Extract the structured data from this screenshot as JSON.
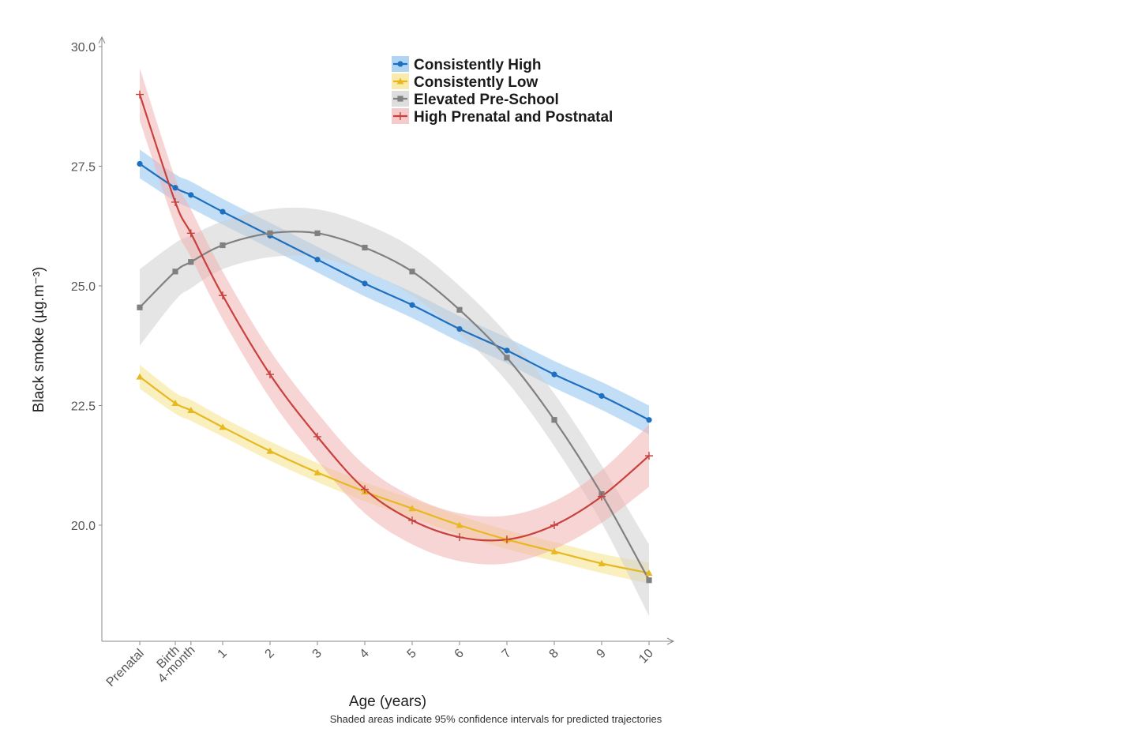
{
  "chart_data": {
    "type": "line",
    "title": "",
    "xlabel": "Age (years)",
    "ylabel": "Black smoke (µg.m⁻³)",
    "note": "Shaded areas indicate 95% confidence intervals for predicted trajectories",
    "ylim": [
      17.6,
      30.2
    ],
    "yticks": [
      20.0,
      22.5,
      25.0,
      27.5,
      30.0
    ],
    "ytick_labels": [
      "20.0",
      "22.5",
      "25.0",
      "27.5",
      "30.0"
    ],
    "x": [
      -0.75,
      0.0,
      0.33,
      1,
      2,
      3,
      4,
      5,
      6,
      7,
      8,
      9,
      10
    ],
    "xtick_labels": [
      "Prenatal",
      "Birth",
      "4-month",
      "1",
      "2",
      "3",
      "4",
      "5",
      "6",
      "7",
      "8",
      "9",
      "10"
    ],
    "legend_position": "top-center",
    "series": [
      {
        "name": "Consistently High",
        "color": "#1f6fbf",
        "band_color": "#8fc3ee",
        "marker": "circle",
        "values": [
          27.55,
          27.05,
          26.9,
          26.55,
          26.05,
          25.55,
          25.05,
          24.6,
          24.1,
          23.65,
          23.15,
          22.7,
          22.2
        ],
        "ci_halfwidth": [
          0.3,
          0.28,
          0.28,
          0.27,
          0.27,
          0.27,
          0.27,
          0.27,
          0.27,
          0.27,
          0.28,
          0.29,
          0.3
        ]
      },
      {
        "name": "Consistently Low",
        "color": "#e8b820",
        "band_color": "#f6e18a",
        "marker": "triangle",
        "values": [
          23.1,
          22.55,
          22.4,
          22.05,
          21.55,
          21.1,
          20.7,
          20.35,
          20.0,
          19.7,
          19.45,
          19.2,
          19.0
        ],
        "ci_halfwidth": [
          0.25,
          0.22,
          0.22,
          0.2,
          0.2,
          0.2,
          0.2,
          0.2,
          0.2,
          0.2,
          0.2,
          0.2,
          0.22
        ]
      },
      {
        "name": "Elevated Pre-School",
        "color": "#808080",
        "band_color": "#cfcfcf",
        "marker": "square",
        "values": [
          24.55,
          25.3,
          25.5,
          25.85,
          26.1,
          26.1,
          25.8,
          25.3,
          24.5,
          23.5,
          22.2,
          20.65,
          18.85
        ],
        "ci_halfwidth": [
          0.8,
          0.6,
          0.55,
          0.5,
          0.5,
          0.5,
          0.5,
          0.5,
          0.5,
          0.5,
          0.55,
          0.6,
          0.75
        ]
      },
      {
        "name": "High Prenatal and Postnatal",
        "color": "#c8413c",
        "band_color": "#f1b3b3",
        "marker": "plus",
        "values": [
          29.0,
          26.75,
          26.1,
          24.8,
          23.15,
          21.85,
          20.75,
          20.1,
          19.75,
          19.7,
          20.0,
          20.6,
          21.45
        ],
        "ci_halfwidth": [
          0.55,
          0.5,
          0.5,
          0.5,
          0.5,
          0.5,
          0.5,
          0.5,
          0.5,
          0.5,
          0.5,
          0.55,
          0.65
        ]
      }
    ]
  }
}
